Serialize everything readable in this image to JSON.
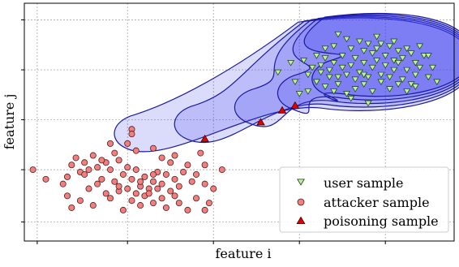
{
  "chart_data": {
    "type": "scatter",
    "title": "",
    "xlabel": "feature i",
    "ylabel": "feature j",
    "x_tick_labels_shown": false,
    "y_tick_labels_shown": false,
    "grid": true,
    "grid_style": "dotted",
    "legend_position": "lower-right",
    "xlim": [
      0,
      10
    ],
    "ylim": [
      0,
      10
    ],
    "colors": {
      "user": "#b8f59a",
      "attacker": "#f08080",
      "poisoning": "#e00000",
      "region_fill": "#3a3af0",
      "region_edge": "#1a1aa0",
      "grid": "#999999"
    },
    "series": [
      {
        "name": "user sample",
        "marker": "triangle-down",
        "points": [
          [
            7.3,
            8.7
          ],
          [
            7.5,
            8.5
          ],
          [
            7.2,
            8.2
          ],
          [
            7.6,
            8.1
          ],
          [
            7.8,
            8.4
          ],
          [
            7.9,
            8.0
          ],
          [
            8.0,
            8.3
          ],
          [
            8.1,
            7.9
          ],
          [
            8.2,
            8.1
          ],
          [
            8.3,
            8.3
          ],
          [
            8.4,
            7.8
          ],
          [
            8.5,
            8.2
          ],
          [
            8.6,
            7.6
          ],
          [
            8.7,
            8.0
          ],
          [
            8.8,
            7.7
          ],
          [
            8.9,
            8.1
          ],
          [
            9.0,
            7.9
          ],
          [
            9.1,
            7.5
          ],
          [
            9.2,
            8.2
          ],
          [
            9.3,
            7.8
          ],
          [
            6.8,
            7.8
          ],
          [
            6.9,
            7.4
          ],
          [
            7.0,
            7.7
          ],
          [
            7.1,
            7.2
          ],
          [
            7.2,
            7.5
          ],
          [
            7.3,
            6.9
          ],
          [
            7.4,
            7.3
          ],
          [
            7.5,
            7.0
          ],
          [
            7.6,
            7.4
          ],
          [
            7.7,
            6.8
          ],
          [
            7.8,
            7.1
          ],
          [
            7.9,
            7.5
          ],
          [
            8.0,
            6.9
          ],
          [
            8.1,
            7.3
          ],
          [
            8.2,
            7.6
          ],
          [
            8.3,
            7.0
          ],
          [
            8.4,
            7.4
          ],
          [
            8.5,
            6.9
          ],
          [
            8.6,
            7.2
          ],
          [
            8.7,
            7.5
          ],
          [
            8.8,
            6.8
          ],
          [
            8.9,
            7.2
          ],
          [
            9.0,
            6.6
          ],
          [
            9.1,
            7.0
          ],
          [
            9.2,
            7.3
          ],
          [
            6.5,
            7.6
          ],
          [
            6.6,
            7.0
          ],
          [
            6.7,
            7.3
          ],
          [
            6.8,
            6.7
          ],
          [
            6.9,
            7.1
          ],
          [
            7.0,
            6.5
          ],
          [
            7.1,
            6.9
          ],
          [
            7.2,
            6.3
          ],
          [
            7.3,
            6.6
          ],
          [
            7.5,
            6.2
          ],
          [
            7.7,
            6.4
          ],
          [
            7.9,
            6.6
          ],
          [
            8.1,
            6.3
          ],
          [
            8.3,
            6.7
          ],
          [
            8.5,
            6.4
          ],
          [
            8.7,
            6.6
          ],
          [
            8.9,
            6.3
          ],
          [
            9.1,
            6.5
          ],
          [
            9.4,
            6.9
          ],
          [
            9.5,
            7.3
          ],
          [
            9.6,
            6.7
          ],
          [
            6.2,
            7.5
          ],
          [
            5.9,
            7.1
          ],
          [
            7.6,
            6.0
          ],
          [
            8.0,
            5.8
          ],
          [
            6.6,
            6.3
          ],
          [
            6.3,
            6.7
          ],
          [
            9.4,
            7.8
          ],
          [
            8.2,
            8.6
          ],
          [
            7.4,
            7.8
          ],
          [
            7.0,
            8.1
          ],
          [
            7.7,
            7.7
          ],
          [
            8.6,
            8.4
          ],
          [
            6.4,
            6.2
          ],
          [
            7.9,
            7.0
          ]
        ]
      },
      {
        "name": "attacker sample",
        "marker": "circle",
        "points": [
          [
            0.2,
            3.0
          ],
          [
            0.9,
            2.4
          ],
          [
            1.0,
            2.7
          ],
          [
            1.1,
            3.2
          ],
          [
            1.2,
            3.5
          ],
          [
            1.3,
            2.9
          ],
          [
            1.4,
            3.3
          ],
          [
            1.5,
            3.0
          ],
          [
            1.6,
            3.6
          ],
          [
            1.7,
            3.1
          ],
          [
            1.8,
            2.6
          ],
          [
            1.9,
            3.3
          ],
          [
            2.0,
            3.0
          ],
          [
            2.1,
            2.5
          ],
          [
            2.2,
            3.4
          ],
          [
            2.3,
            2.8
          ],
          [
            2.4,
            3.1
          ],
          [
            2.5,
            2.6
          ],
          [
            2.6,
            3.0
          ],
          [
            2.7,
            2.3
          ],
          [
            2.8,
            2.7
          ],
          [
            2.9,
            2.2
          ],
          [
            3.0,
            2.5
          ],
          [
            3.1,
            2.9
          ],
          [
            3.2,
            2.4
          ],
          [
            3.3,
            2.8
          ],
          [
            3.4,
            2.1
          ],
          [
            3.5,
            2.6
          ],
          [
            3.6,
            2.3
          ],
          [
            3.7,
            2.9
          ],
          [
            1.0,
            1.9
          ],
          [
            1.5,
            2.2
          ],
          [
            2.0,
            1.8
          ],
          [
            2.5,
            1.7
          ],
          [
            3.0,
            1.6
          ],
          [
            3.5,
            1.9
          ],
          [
            1.4,
            2.8
          ],
          [
            1.7,
            2.4
          ],
          [
            2.2,
            2.1
          ],
          [
            2.8,
            1.9
          ],
          [
            3.2,
            1.8
          ],
          [
            3.6,
            1.6
          ],
          [
            4.0,
            1.8
          ],
          [
            4.3,
            1.6
          ],
          [
            4.2,
            2.4
          ],
          [
            2.5,
            4.7
          ],
          [
            2.5,
            4.5
          ],
          [
            2.4,
            4.1
          ],
          [
            2.0,
            4.1
          ],
          [
            2.6,
            3.8
          ],
          [
            3.0,
            3.9
          ],
          [
            3.2,
            3.5
          ],
          [
            3.4,
            3.3
          ],
          [
            3.5,
            3.6
          ],
          [
            3.8,
            3.2
          ],
          [
            4.1,
            3.7
          ],
          [
            4.0,
            2.8
          ],
          [
            3.9,
            2.5
          ],
          [
            4.4,
            2.2
          ],
          [
            1.1,
            1.4
          ],
          [
            1.6,
            1.5
          ],
          [
            2.3,
            1.3
          ],
          [
            2.6,
            2.0
          ],
          [
            2.7,
            1.5
          ],
          [
            3.3,
            1.4
          ],
          [
            3.8,
            1.3
          ],
          [
            1.3,
            1.7
          ],
          [
            1.9,
            2.0
          ],
          [
            2.4,
            2.2
          ],
          [
            2.9,
            2.0
          ],
          [
            0.5,
            2.6
          ],
          [
            4.2,
            3.2
          ],
          [
            3.0,
            2.8
          ],
          [
            2.1,
            3.7
          ],
          [
            1.8,
            3.4
          ],
          [
            4.2,
            1.3
          ],
          [
            4.6,
            3.0
          ],
          [
            2.2,
            2.3
          ],
          [
            3.1,
            2.2
          ],
          [
            2.7,
            2.5
          ]
        ]
      },
      {
        "name": "poisoning sample",
        "marker": "triangle-up",
        "points": [
          [
            4.2,
            4.3
          ],
          [
            5.5,
            5.0
          ],
          [
            6.0,
            5.5
          ],
          [
            6.3,
            5.7
          ]
        ]
      }
    ],
    "decision_regions": [
      {
        "cx": 7.8,
        "cy": 7.4,
        "rx": 2.6,
        "ry": 1.9,
        "tail_to": [
          2.2,
          4.5
        ],
        "opacity": 0.18
      },
      {
        "cx": 7.9,
        "cy": 7.5,
        "rx": 2.5,
        "ry": 1.85,
        "tail_to": [
          3.6,
          4.9
        ],
        "opacity": 0.18
      },
      {
        "cx": 8.0,
        "cy": 7.6,
        "rx": 2.4,
        "ry": 1.8,
        "tail_to": [
          5.0,
          5.6
        ],
        "opacity": 0.18
      },
      {
        "cx": 8.1,
        "cy": 7.7,
        "rx": 2.3,
        "ry": 1.75,
        "tail_to": [
          6.0,
          6.2
        ],
        "opacity": 0.2
      },
      {
        "cx": 8.2,
        "cy": 7.8,
        "rx": 2.2,
        "ry": 1.7,
        "tail_to": [
          6.8,
          6.8
        ],
        "opacity": 0.22
      }
    ]
  }
}
